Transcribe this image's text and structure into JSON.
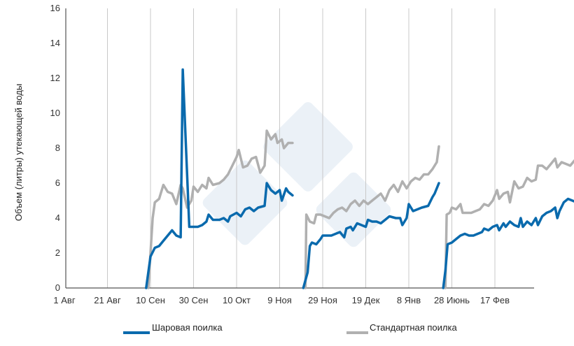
{
  "chart_data": {
    "type": "line",
    "title": "",
    "xlabel": "",
    "ylabel": "Объем (литры) утекающей воды",
    "ylim": [
      0,
      16
    ],
    "yticks": [
      "0",
      "2",
      "4",
      "6",
      "8",
      "10",
      "12",
      "14",
      "16"
    ],
    "categories": [
      "1 Авг",
      "21 Авг",
      "10 Сен",
      "30 Сен",
      "10 Окт",
      "9 Ноя",
      "29 Ноя",
      "19 Дек",
      "8 Янв",
      "28 Июнь",
      "17 Фев"
    ],
    "grid": "vertical",
    "legend_position": "bottom",
    "colors": {
      "ball": "#0a6aad",
      "standard": "#b0b0b0",
      "watermark": "#c5d6e8"
    },
    "series": [
      {
        "name": "Шаровая поилка",
        "segments": [
          [
            [
              1.9,
              0
            ],
            [
              2.0,
              1.8
            ],
            [
              2.1,
              2.3
            ],
            [
              2.2,
              2.4
            ],
            [
              2.3,
              2.7
            ],
            [
              2.4,
              3.0
            ],
            [
              2.5,
              3.3
            ],
            [
              2.6,
              3.0
            ],
            [
              2.7,
              2.9
            ],
            [
              2.75,
              12.5
            ],
            [
              2.85,
              6.5
            ],
            [
              2.9,
              3.5
            ],
            [
              3.0,
              3.5
            ],
            [
              3.1,
              3.5
            ],
            [
              3.2,
              3.6
            ],
            [
              3.3,
              3.8
            ],
            [
              3.35,
              4.2
            ],
            [
              3.45,
              3.9
            ],
            [
              3.6,
              3.9
            ],
            [
              3.7,
              4.0
            ],
            [
              3.8,
              3.8
            ],
            [
              3.85,
              4.1
            ],
            [
              4.0,
              4.3
            ],
            [
              4.1,
              4.1
            ],
            [
              4.2,
              4.5
            ],
            [
              4.3,
              4.6
            ],
            [
              4.4,
              4.4
            ],
            [
              4.5,
              4.6
            ],
            [
              4.65,
              4.7
            ],
            [
              4.7,
              6.0
            ],
            [
              4.8,
              5.6
            ],
            [
              4.9,
              5.4
            ],
            [
              5.0,
              5.6
            ],
            [
              5.05,
              5.0
            ],
            [
              5.15,
              5.7
            ],
            [
              5.2,
              5.5
            ],
            [
              5.3,
              5.3
            ]
          ],
          [
            [
              5.55,
              0
            ],
            [
              5.65,
              0.9
            ],
            [
              5.7,
              2.4
            ],
            [
              5.75,
              2.6
            ],
            [
              5.85,
              2.5
            ],
            [
              5.95,
              2.8
            ],
            [
              6.0,
              3.0
            ],
            [
              6.1,
              3.0
            ],
            [
              6.2,
              3.0
            ],
            [
              6.3,
              3.1
            ],
            [
              6.4,
              3.2
            ],
            [
              6.5,
              2.9
            ],
            [
              6.55,
              3.4
            ],
            [
              6.65,
              3.5
            ],
            [
              6.7,
              3.3
            ],
            [
              6.8,
              3.7
            ],
            [
              6.9,
              3.6
            ],
            [
              7.0,
              3.5
            ],
            [
              7.05,
              3.9
            ],
            [
              7.15,
              3.8
            ],
            [
              7.25,
              3.8
            ],
            [
              7.35,
              3.7
            ],
            [
              7.45,
              3.9
            ],
            [
              7.55,
              4.1
            ],
            [
              7.7,
              4.0
            ],
            [
              7.8,
              4.0
            ],
            [
              7.85,
              3.6
            ],
            [
              7.95,
              4.0
            ],
            [
              8.0,
              4.8
            ],
            [
              8.1,
              4.4
            ],
            [
              8.2,
              4.5
            ],
            [
              8.3,
              4.6
            ],
            [
              8.45,
              4.7
            ],
            [
              8.55,
              5.2
            ],
            [
              8.6,
              5.4
            ],
            [
              8.7,
              6.0
            ]
          ],
          [
            [
              8.8,
              0
            ],
            [
              8.85,
              1.0
            ],
            [
              8.9,
              2.5
            ],
            [
              9.0,
              2.6
            ],
            [
              9.1,
              2.8
            ],
            [
              9.2,
              3.0
            ],
            [
              9.3,
              3.1
            ],
            [
              9.4,
              3.0
            ],
            [
              9.5,
              3.0
            ],
            [
              9.6,
              3.1
            ],
            [
              9.7,
              3.2
            ],
            [
              9.75,
              3.4
            ],
            [
              9.85,
              3.3
            ],
            [
              9.95,
              3.5
            ],
            [
              10.05,
              3.6
            ],
            [
              10.1,
              3.3
            ],
            [
              10.2,
              3.7
            ],
            [
              10.25,
              3.5
            ],
            [
              10.35,
              3.8
            ],
            [
              10.45,
              3.6
            ],
            [
              10.55,
              3.5
            ],
            [
              10.6,
              4.0
            ],
            [
              10.65,
              3.5
            ],
            [
              10.75,
              3.8
            ],
            [
              10.85,
              3.6
            ],
            [
              10.95,
              4.0
            ],
            [
              11.0,
              3.6
            ],
            [
              11.1,
              4.1
            ],
            [
              11.2,
              4.3
            ],
            [
              11.3,
              4.4
            ],
            [
              11.4,
              4.6
            ],
            [
              11.45,
              4.0
            ],
            [
              11.5,
              4.4
            ],
            [
              11.6,
              4.9
            ],
            [
              11.7,
              5.1
            ],
            [
              11.8,
              5.0
            ],
            [
              11.9,
              4.9
            ],
            [
              12.0,
              5.0
            ],
            [
              12.05,
              4.8
            ],
            [
              12.15,
              5.1
            ],
            [
              12.25,
              5.0
            ],
            [
              12.35,
              4.8
            ]
          ]
        ]
      },
      {
        "name": "Стандартная поилка",
        "segments": [
          [
            [
              1.95,
              0
            ],
            [
              2.0,
              2.0
            ],
            [
              2.05,
              4.0
            ],
            [
              2.1,
              4.9
            ],
            [
              2.2,
              5.1
            ],
            [
              2.3,
              5.9
            ],
            [
              2.4,
              5.5
            ],
            [
              2.5,
              5.4
            ],
            [
              2.6,
              4.8
            ],
            [
              2.7,
              5.9
            ],
            [
              2.75,
              5.7
            ],
            [
              2.85,
              4.6
            ],
            [
              2.95,
              5.0
            ],
            [
              3.0,
              5.8
            ],
            [
              3.1,
              5.5
            ],
            [
              3.2,
              5.9
            ],
            [
              3.3,
              5.7
            ],
            [
              3.35,
              6.3
            ],
            [
              3.45,
              5.9
            ],
            [
              3.6,
              6.0
            ],
            [
              3.7,
              6.2
            ],
            [
              3.8,
              6.5
            ],
            [
              3.9,
              7.0
            ],
            [
              4.0,
              7.5
            ],
            [
              4.05,
              7.9
            ],
            [
              4.15,
              6.9
            ],
            [
              4.25,
              7.0
            ],
            [
              4.35,
              7.4
            ],
            [
              4.45,
              7.5
            ],
            [
              4.55,
              6.6
            ],
            [
              4.65,
              7.0
            ],
            [
              4.7,
              9.0
            ],
            [
              4.8,
              8.5
            ],
            [
              4.9,
              8.8
            ],
            [
              4.95,
              8.3
            ],
            [
              5.05,
              8.5
            ],
            [
              5.1,
              8.0
            ],
            [
              5.2,
              8.3
            ],
            [
              5.3,
              8.3
            ]
          ],
          [
            [
              5.6,
              0
            ],
            [
              5.62,
              4.2
            ],
            [
              5.7,
              3.8
            ],
            [
              5.8,
              3.7
            ],
            [
              5.85,
              4.2
            ],
            [
              5.95,
              4.2
            ],
            [
              6.05,
              4.1
            ],
            [
              6.15,
              4.0
            ],
            [
              6.25,
              4.3
            ],
            [
              6.35,
              4.5
            ],
            [
              6.45,
              4.6
            ],
            [
              6.55,
              4.4
            ],
            [
              6.65,
              4.8
            ],
            [
              6.75,
              5.0
            ],
            [
              6.85,
              4.7
            ],
            [
              6.95,
              5.0
            ],
            [
              7.05,
              4.8
            ],
            [
              7.15,
              5.0
            ],
            [
              7.25,
              5.2
            ],
            [
              7.35,
              5.4
            ],
            [
              7.45,
              5.0
            ],
            [
              7.55,
              5.6
            ],
            [
              7.65,
              5.9
            ],
            [
              7.75,
              5.5
            ],
            [
              7.85,
              6.1
            ],
            [
              7.95,
              5.7
            ],
            [
              8.05,
              6.1
            ],
            [
              8.15,
              6.3
            ],
            [
              8.25,
              6.2
            ],
            [
              8.35,
              6.5
            ],
            [
              8.45,
              6.5
            ],
            [
              8.55,
              6.8
            ],
            [
              8.65,
              7.2
            ],
            [
              8.7,
              8.1
            ]
          ],
          [
            [
              8.85,
              0
            ],
            [
              8.88,
              4.2
            ],
            [
              8.95,
              4.3
            ],
            [
              9.0,
              4.6
            ],
            [
              9.1,
              4.5
            ],
            [
              9.2,
              4.8
            ],
            [
              9.25,
              4.3
            ],
            [
              9.35,
              4.3
            ],
            [
              9.45,
              4.3
            ],
            [
              9.55,
              4.4
            ],
            [
              9.65,
              4.5
            ],
            [
              9.75,
              4.8
            ],
            [
              9.85,
              4.7
            ],
            [
              9.95,
              5.0
            ],
            [
              10.05,
              5.6
            ],
            [
              10.1,
              5.1
            ],
            [
              10.2,
              5.4
            ],
            [
              10.3,
              5.5
            ],
            [
              10.35,
              4.9
            ],
            [
              10.45,
              6.1
            ],
            [
              10.55,
              5.7
            ],
            [
              10.65,
              5.8
            ],
            [
              10.75,
              6.3
            ],
            [
              10.85,
              6.1
            ],
            [
              10.95,
              6.2
            ],
            [
              11.0,
              7.0
            ],
            [
              11.1,
              7.0
            ],
            [
              11.2,
              6.8
            ],
            [
              11.3,
              7.1
            ],
            [
              11.4,
              7.4
            ],
            [
              11.45,
              6.9
            ],
            [
              11.55,
              7.2
            ],
            [
              11.65,
              7.1
            ],
            [
              11.75,
              7.0
            ],
            [
              11.85,
              7.3
            ],
            [
              11.95,
              7.1
            ],
            [
              12.05,
              7.0
            ],
            [
              12.15,
              7.1
            ],
            [
              12.25,
              7.0
            ],
            [
              12.35,
              6.9
            ]
          ]
        ]
      }
    ]
  }
}
